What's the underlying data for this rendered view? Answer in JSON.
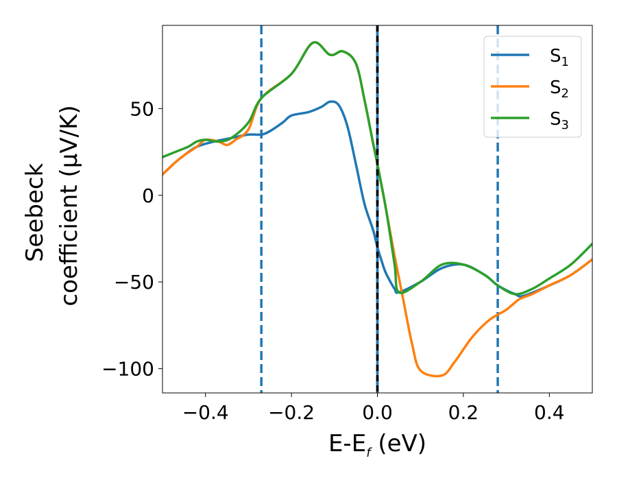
{
  "chart_data": {
    "type": "line",
    "xlabel": "E-E",
    "xlabel_sub": "f",
    "xlabel_unit": " (eV)",
    "ylabel_line1": "Seebeck",
    "ylabel_line2": "coefficient  (μV/K)",
    "xlim": [
      -0.5,
      0.5
    ],
    "ylim": [
      -114,
      98
    ],
    "x_ticks": [
      -0.4,
      -0.2,
      0.0,
      0.2,
      0.4
    ],
    "x_tick_labels": [
      "−0.4",
      "−0.2",
      "0.0",
      "0.2",
      "0.4"
    ],
    "y_ticks": [
      -100,
      -50,
      0,
      50
    ],
    "y_tick_labels": [
      "−100",
      "−50",
      "0",
      "50"
    ],
    "legend_position": "top-right",
    "vlines": [
      {
        "x": -0.27,
        "style": "dashed",
        "color": "#1f77b4"
      },
      {
        "x": 0.0,
        "style": "dashed",
        "color": "#000000"
      },
      {
        "x": 0.0,
        "style": "solid",
        "color": "#1f77b4"
      },
      {
        "x": 0.28,
        "style": "dashed",
        "color": "#1f77b4"
      }
    ],
    "series": [
      {
        "name": "S",
        "sub": "1",
        "color": "#1f77b4",
        "points": [
          [
            -0.5,
            12
          ],
          [
            -0.47,
            19
          ],
          [
            -0.45,
            23
          ],
          [
            -0.42,
            28
          ],
          [
            -0.38,
            31
          ],
          [
            -0.34,
            33
          ],
          [
            -0.3,
            35
          ],
          [
            -0.27,
            35
          ],
          [
            -0.25,
            37
          ],
          [
            -0.22,
            42
          ],
          [
            -0.2,
            46
          ],
          [
            -0.16,
            48
          ],
          [
            -0.13,
            51
          ],
          [
            -0.11,
            54
          ],
          [
            -0.09,
            52
          ],
          [
            -0.07,
            40
          ],
          [
            -0.05,
            18
          ],
          [
            -0.03,
            -5
          ],
          [
            -0.01,
            -20
          ],
          [
            0.0,
            -30
          ],
          [
            0.01,
            -38
          ],
          [
            0.02,
            -45
          ],
          [
            0.04,
            -54
          ],
          [
            0.05,
            -56
          ],
          [
            0.1,
            -50
          ],
          [
            0.15,
            -42
          ],
          [
            0.2,
            -40
          ],
          [
            0.25,
            -46
          ],
          [
            0.28,
            -52
          ],
          [
            0.32,
            -57
          ],
          [
            0.34,
            -58
          ],
          [
            0.4,
            -52
          ],
          [
            0.45,
            -46
          ],
          [
            0.5,
            -37
          ]
        ]
      },
      {
        "name": "S",
        "sub": "2",
        "color": "#ff7f0e",
        "points": [
          [
            -0.5,
            12
          ],
          [
            -0.47,
            19
          ],
          [
            -0.45,
            23
          ],
          [
            -0.42,
            28
          ],
          [
            -0.4,
            32
          ],
          [
            -0.37,
            31
          ],
          [
            -0.35,
            29
          ],
          [
            -0.33,
            32
          ],
          [
            -0.3,
            38
          ],
          [
            -0.27,
            56
          ],
          [
            -0.2,
            70
          ],
          [
            -0.15,
            88
          ],
          [
            -0.11,
            81
          ],
          [
            -0.08,
            83
          ],
          [
            -0.05,
            76
          ],
          [
            -0.03,
            55
          ],
          [
            -0.01,
            30
          ],
          [
            0.0,
            18
          ],
          [
            0.02,
            -8
          ],
          [
            0.04,
            -35
          ],
          [
            0.06,
            -60
          ],
          [
            0.08,
            -85
          ],
          [
            0.1,
            -101
          ],
          [
            0.15,
            -104
          ],
          [
            0.18,
            -96
          ],
          [
            0.22,
            -82
          ],
          [
            0.26,
            -72
          ],
          [
            0.3,
            -66
          ],
          [
            0.33,
            -60
          ],
          [
            0.36,
            -57
          ],
          [
            0.4,
            -52
          ],
          [
            0.45,
            -46
          ],
          [
            0.5,
            -37
          ]
        ]
      },
      {
        "name": "S",
        "sub": "3",
        "color": "#2ca02c",
        "points": [
          [
            -0.5,
            22
          ],
          [
            -0.47,
            25
          ],
          [
            -0.44,
            28
          ],
          [
            -0.42,
            31
          ],
          [
            -0.4,
            32
          ],
          [
            -0.37,
            31
          ],
          [
            -0.34,
            33
          ],
          [
            -0.3,
            42
          ],
          [
            -0.27,
            56
          ],
          [
            -0.2,
            70
          ],
          [
            -0.15,
            88
          ],
          [
            -0.11,
            81
          ],
          [
            -0.08,
            83
          ],
          [
            -0.05,
            76
          ],
          [
            -0.03,
            55
          ],
          [
            -0.01,
            30
          ],
          [
            0.0,
            18
          ],
          [
            0.02,
            -8
          ],
          [
            0.04,
            -40
          ],
          [
            0.05,
            -56
          ],
          [
            0.1,
            -50
          ],
          [
            0.15,
            -40
          ],
          [
            0.2,
            -40
          ],
          [
            0.25,
            -46
          ],
          [
            0.28,
            -52
          ],
          [
            0.32,
            -57
          ],
          [
            0.36,
            -54
          ],
          [
            0.4,
            -48
          ],
          [
            0.45,
            -40
          ],
          [
            0.5,
            -28
          ]
        ]
      }
    ]
  }
}
